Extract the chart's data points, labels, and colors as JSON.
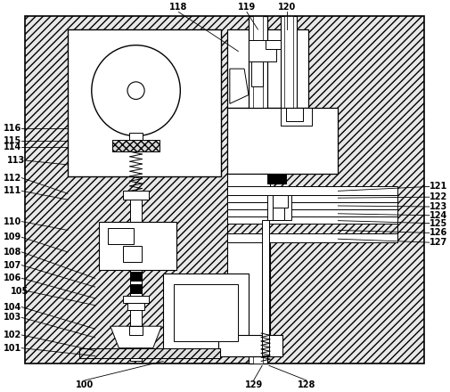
{
  "fig_width": 5.06,
  "fig_height": 4.4,
  "dpi": 100,
  "bg_color": "#ffffff"
}
